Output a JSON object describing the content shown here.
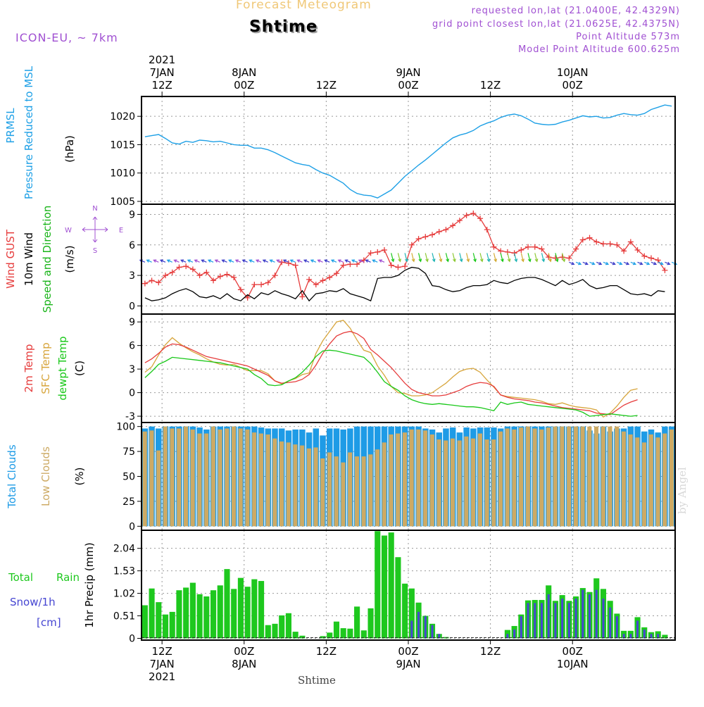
{
  "header": {
    "top_title": "Forecast Meteogram",
    "location": "Shtime",
    "model": "ICON-EU, ~ 7km",
    "requested": "requested lon,lat (21.0400E, 42.4329N)",
    "grid_point": "grid point closest lon,lat (21.0625E, 42.4375N)",
    "point_alt": "Point Altitude 573m",
    "model_alt": "Model Point Altitude 600.625m",
    "credit": "by Angel",
    "bottom_label": "Shtime"
  },
  "colors": {
    "pressure": "#1ea0e6",
    "gust": "#e63c3c",
    "wind": "#000000",
    "wind_label": "#19b419",
    "temp2m": "#e63c3c",
    "sfc": "#d7a53c",
    "dewpt": "#19c819",
    "total_clouds": "#1e9be6",
    "low_clouds": "#cdaa64",
    "rain": "#1ec81e",
    "snow": "#4646d2",
    "header_purple": "#a050d2",
    "title_orange": "#f0c878"
  },
  "time_axis": {
    "hours": 78,
    "labels": [
      {
        "h": 3,
        "lines": [
          "2021",
          "7JAN",
          "12Z"
        ]
      },
      {
        "h": 15,
        "lines": [
          "8JAN",
          "00Z"
        ]
      },
      {
        "h": 27,
        "lines": [
          "12Z"
        ]
      },
      {
        "h": 39,
        "lines": [
          "9JAN",
          "00Z"
        ]
      },
      {
        "h": 51,
        "lines": [
          "12Z"
        ]
      },
      {
        "h": 63,
        "lines": [
          "10JAN",
          "00Z"
        ]
      }
    ],
    "bottom_labels": [
      {
        "h": 3,
        "lines": [
          "12Z",
          "7JAN",
          "2021"
        ]
      },
      {
        "h": 15,
        "lines": [
          "00Z",
          "8JAN"
        ]
      },
      {
        "h": 27,
        "lines": [
          "12Z"
        ]
      },
      {
        "h": 39,
        "lines": [
          "00Z",
          "9JAN"
        ]
      },
      {
        "h": 51,
        "lines": [
          "12Z"
        ]
      },
      {
        "h": 63,
        "lines": [
          "00Z",
          "10JAN"
        ]
      }
    ]
  },
  "chart_data": [
    {
      "type": "line",
      "panel": "pressure",
      "ylabel": [
        "PRMSL",
        "Pressure Reduced to MSL",
        "(hPa)"
      ],
      "yticks": [
        1005,
        1010,
        1015,
        1020
      ],
      "ylim": [
        1004.5,
        1023.5
      ],
      "series": [
        {
          "name": "PRMSL",
          "values": [
            1016.4,
            1016.6,
            1016.8,
            1016.1,
            1015.3,
            1015.1,
            1015.6,
            1015.4,
            1015.8,
            1015.7,
            1015.5,
            1015.6,
            1015.3,
            1015.0,
            1014.9,
            1014.9,
            1014.4,
            1014.4,
            1014.1,
            1013.6,
            1013.0,
            1012.4,
            1011.8,
            1011.5,
            1011.3,
            1010.6,
            1010.0,
            1009.6,
            1008.9,
            1008.2,
            1007.1,
            1006.4,
            1006.1,
            1006.0,
            1005.6,
            1006.3,
            1007.0,
            1008.2,
            1009.4,
            1010.4,
            1011.4,
            1012.3,
            1013.3,
            1014.3,
            1015.3,
            1016.2,
            1016.7,
            1017.0,
            1017.5,
            1018.3,
            1018.8,
            1019.2,
            1019.8,
            1020.2,
            1020.4,
            1020.1,
            1019.5,
            1018.8,
            1018.6,
            1018.5,
            1018.6,
            1019.0,
            1019.3,
            1019.7,
            1020.1,
            1019.9,
            1020.0,
            1019.7,
            1019.8,
            1020.2,
            1020.5,
            1020.3,
            1020.2,
            1020.5,
            1021.2,
            1021.6,
            1022.0,
            1021.8
          ]
        }
      ]
    },
    {
      "type": "line",
      "panel": "wind",
      "ylabel": [
        "Wind GUST",
        "10m Wind",
        "Speed and Direction",
        "(m/s)"
      ],
      "compass": [
        "N",
        "W",
        "E",
        "S"
      ],
      "yticks": [
        0,
        3,
        6,
        9
      ],
      "ylim": [
        -0.8,
        10.0
      ],
      "series": [
        {
          "name": "Wind GUST",
          "values": [
            2.2,
            2.5,
            2.3,
            3.0,
            3.3,
            3.8,
            3.9,
            3.6,
            3.0,
            3.3,
            2.5,
            2.9,
            3.1,
            2.8,
            1.6,
            0.8,
            2.1,
            2.1,
            2.3,
            3.0,
            4.3,
            4.2,
            4.0,
            0.9,
            2.6,
            2.1,
            2.5,
            2.8,
            3.2,
            4.0,
            4.1,
            4.1,
            4.5,
            5.2,
            5.3,
            5.5,
            4.0,
            3.8,
            3.9,
            6.0,
            6.6,
            6.8,
            7.0,
            7.3,
            7.5,
            7.9,
            8.4,
            8.9,
            9.1,
            8.6,
            7.5,
            5.8,
            5.4,
            5.3,
            5.2,
            5.5,
            5.8,
            5.8,
            5.6,
            4.8,
            4.7,
            4.8,
            4.7,
            5.6,
            6.5,
            6.7,
            6.3,
            6.1,
            6.1,
            6.0,
            5.4,
            6.3,
            5.5,
            4.9,
            4.7,
            4.5,
            3.5
          ]
        },
        {
          "name": "10m Wind",
          "values": [
            0.8,
            0.5,
            0.6,
            0.8,
            1.2,
            1.5,
            1.7,
            1.4,
            0.9,
            0.8,
            1.0,
            0.7,
            1.2,
            0.7,
            0.5,
            1.1,
            0.7,
            1.3,
            1.1,
            1.5,
            1.2,
            1.0,
            0.7,
            1.5,
            0.5,
            1.2,
            1.3,
            1.5,
            1.4,
            1.7,
            1.2,
            1.0,
            0.8,
            0.5,
            2.7,
            2.8,
            2.8,
            3.0,
            3.5,
            3.8,
            3.7,
            3.2,
            2.0,
            1.9,
            1.6,
            1.4,
            1.5,
            1.8,
            2.0,
            2.0,
            2.1,
            2.5,
            2.3,
            2.2,
            2.5,
            2.7,
            2.8,
            2.8,
            2.6,
            2.3,
            2.0,
            2.5,
            2.1,
            2.3,
            2.6,
            2.0,
            1.7,
            1.8,
            2.0,
            2.0,
            1.6,
            1.2,
            1.1,
            1.2,
            1.0,
            1.5,
            1.4
          ]
        }
      ]
    },
    {
      "type": "line",
      "panel": "temperature",
      "ylabel": [
        "2m Temp",
        "SFC Temp",
        "dewpt Temp",
        "(C)"
      ],
      "yticks": [
        -3,
        0,
        3,
        6,
        9
      ],
      "ylim": [
        -3.8,
        10.0
      ],
      "series": [
        {
          "name": "2m Temp",
          "values": [
            3.8,
            4.3,
            5.0,
            5.8,
            6.2,
            6.1,
            5.8,
            5.4,
            5.0,
            4.6,
            4.4,
            4.2,
            4.0,
            3.8,
            3.6,
            3.4,
            3.0,
            2.6,
            2.2,
            1.5,
            1.2,
            1.3,
            1.4,
            1.7,
            2.3,
            3.5,
            5.0,
            6.2,
            7.2,
            7.6,
            7.8,
            7.5,
            6.9,
            5.5,
            4.8,
            4.0,
            3.2,
            2.2,
            1.2,
            0.4,
            0.0,
            -0.2,
            -0.4,
            -0.4,
            -0.3,
            0.0,
            0.3,
            0.8,
            1.1,
            1.3,
            1.2,
            0.8,
            -0.3,
            -0.6,
            -0.8,
            -0.9,
            -1.0,
            -1.2,
            -1.3,
            -1.5,
            -1.7,
            -1.9,
            -2.0,
            -2.1,
            -2.2,
            -2.3,
            -2.6,
            -2.7,
            -2.8,
            -2.2,
            -1.6,
            -1.2,
            -0.9
          ]
        },
        {
          "name": "SFC Temp",
          "values": [
            2.6,
            3.3,
            4.8,
            6.1,
            7.0,
            6.3,
            5.7,
            5.2,
            4.8,
            4.3,
            3.9,
            3.6,
            3.5,
            3.6,
            3.2,
            2.8,
            2.8,
            2.8,
            2.4,
            1.5,
            1.1,
            1.5,
            1.8,
            2.3,
            2.5,
            5.0,
            6.6,
            7.8,
            9.0,
            9.2,
            8.2,
            6.7,
            5.4,
            5.1,
            3.4,
            2.2,
            0.8,
            0.0,
            -0.1,
            -0.4,
            -0.4,
            -0.3,
            0.0,
            0.6,
            1.2,
            2.0,
            2.7,
            3.0,
            3.1,
            2.6,
            1.6,
            0.7,
            -0.3,
            -0.5,
            -0.6,
            -0.7,
            -0.8,
            -0.9,
            -1.1,
            -1.4,
            -1.5,
            -1.3,
            -1.6,
            -1.8,
            -1.9,
            -2.0,
            -2.2,
            -3.1,
            -2.6,
            -1.7,
            -0.6,
            0.3,
            0.5
          ]
        },
        {
          "name": "dewpt Temp",
          "values": [
            1.9,
            2.7,
            3.6,
            4.0,
            4.5,
            4.4,
            4.3,
            4.2,
            4.1,
            4.0,
            3.9,
            3.8,
            3.6,
            3.4,
            3.2,
            3.0,
            2.3,
            1.8,
            1.0,
            0.9,
            1.0,
            1.5,
            1.9,
            2.6,
            3.5,
            4.6,
            5.3,
            5.4,
            5.3,
            5.1,
            4.9,
            4.7,
            4.5,
            3.7,
            2.6,
            1.4,
            0.8,
            0.3,
            -0.4,
            -0.9,
            -1.2,
            -1.4,
            -1.5,
            -1.4,
            -1.5,
            -1.6,
            -1.7,
            -1.8,
            -1.8,
            -1.9,
            -2.1,
            -2.3,
            -1.2,
            -1.5,
            -1.3,
            -1.2,
            -1.5,
            -1.6,
            -1.7,
            -1.8,
            -1.9,
            -2.0,
            -2.1,
            -2.2,
            -2.5,
            -3.0,
            -2.9,
            -2.8,
            -2.7,
            -2.8,
            -2.9,
            -3.0,
            -2.9
          ]
        }
      ]
    },
    {
      "type": "bar",
      "panel": "clouds",
      "ylabel": [
        "Total Clouds",
        "Low Clouds",
        "(%)"
      ],
      "yticks": [
        0,
        25,
        50,
        75,
        100
      ],
      "ylim": [
        -4,
        104
      ],
      "series": [
        {
          "name": "Total Clouds",
          "values": [
            98,
            100,
            98,
            100,
            100,
            100,
            100,
            100,
            99,
            97,
            100,
            100,
            100,
            100,
            100,
            100,
            100,
            99,
            98,
            98,
            98,
            96,
            97,
            97,
            94,
            98,
            91,
            98,
            98,
            97,
            98,
            100,
            100,
            100,
            100,
            100,
            100,
            100,
            100,
            100,
            100,
            98,
            97,
            94,
            98,
            99,
            94,
            99,
            98,
            99,
            99,
            99,
            98,
            100,
            100,
            100,
            100,
            100,
            100,
            100,
            100,
            100,
            100,
            100,
            100,
            96,
            93,
            100,
            95,
            98,
            98,
            100,
            100,
            95,
            97,
            94,
            100,
            100
          ]
        },
        {
          "name": "Low Clouds",
          "values": [
            95,
            96,
            76,
            100,
            98,
            98,
            100,
            97,
            93,
            93,
            100,
            97,
            98,
            100,
            98,
            97,
            94,
            93,
            92,
            88,
            85,
            84,
            82,
            81,
            78,
            79,
            68,
            74,
            70,
            64,
            74,
            70,
            70,
            72,
            77,
            84,
            92,
            93,
            94,
            97,
            97,
            96,
            92,
            87,
            86,
            88,
            86,
            90,
            88,
            93,
            87,
            87,
            95,
            98,
            97,
            99,
            100,
            98,
            97,
            99,
            100,
            100,
            100,
            100,
            100,
            100,
            100,
            100,
            100,
            100,
            95,
            92,
            89,
            84,
            92,
            89,
            93,
            97
          ]
        }
      ]
    },
    {
      "type": "bar",
      "panel": "precip",
      "ylabel": [
        "1hr Precip (mm)"
      ],
      "left_labels": [
        "Total",
        "Rain",
        "Snow/1h",
        "[cm]"
      ],
      "yticks": [
        0,
        0.51,
        1.02,
        1.53,
        2.04
      ],
      "ylim": [
        -0.04,
        2.45
      ],
      "series": [
        {
          "name": "Total Rain",
          "values": [
            0.75,
            1.13,
            0.82,
            0.54,
            0.6,
            1.09,
            1.15,
            1.26,
            1.0,
            0.95,
            1.09,
            1.2,
            1.57,
            1.12,
            1.37,
            1.17,
            1.34,
            1.3,
            0.3,
            0.33,
            0.52,
            0.57,
            0.15,
            0.06,
            0,
            0,
            0.05,
            0.13,
            0.38,
            0.23,
            0.22,
            0.72,
            0.18,
            0.68,
            2.43,
            2.33,
            2.4,
            1.84,
            1.24,
            1.13,
            0.81,
            0.51,
            0.33,
            0.1,
            0.03,
            0,
            0,
            0,
            0,
            0,
            0,
            0,
            0,
            0.19,
            0.28,
            0.54,
            0.86,
            0.87,
            0.87,
            1.2,
            0.85,
            0.98,
            0.85,
            0.95,
            1.14,
            1.05,
            1.36,
            1.12,
            0.85,
            0.56,
            0.17,
            0.17,
            0.48,
            0.25,
            0.14,
            0.16,
            0.08
          ]
        },
        {
          "name": "Snow/1h",
          "values": [
            0,
            0,
            0,
            0,
            0,
            0,
            0,
            0,
            0,
            0,
            0,
            0,
            0,
            0,
            0,
            0,
            0,
            0,
            0,
            0,
            0,
            0,
            0,
            0,
            0,
            0,
            0,
            0,
            0,
            0,
            0,
            0,
            0,
            0,
            0,
            0,
            0,
            0,
            0,
            0.4,
            0.6,
            0.5,
            0.3,
            0.1,
            0,
            0,
            0,
            0,
            0,
            0,
            0,
            0,
            0,
            0.1,
            0.2,
            0.5,
            0.8,
            0.8,
            0.8,
            1.0,
            0.8,
            0.9,
            0.8,
            0.9,
            1.1,
            1.0,
            1.1,
            0.9,
            0.7,
            0.5,
            0.1,
            0.1,
            0.4,
            0.2,
            0.1,
            0.1,
            0
          ]
        }
      ]
    }
  ]
}
